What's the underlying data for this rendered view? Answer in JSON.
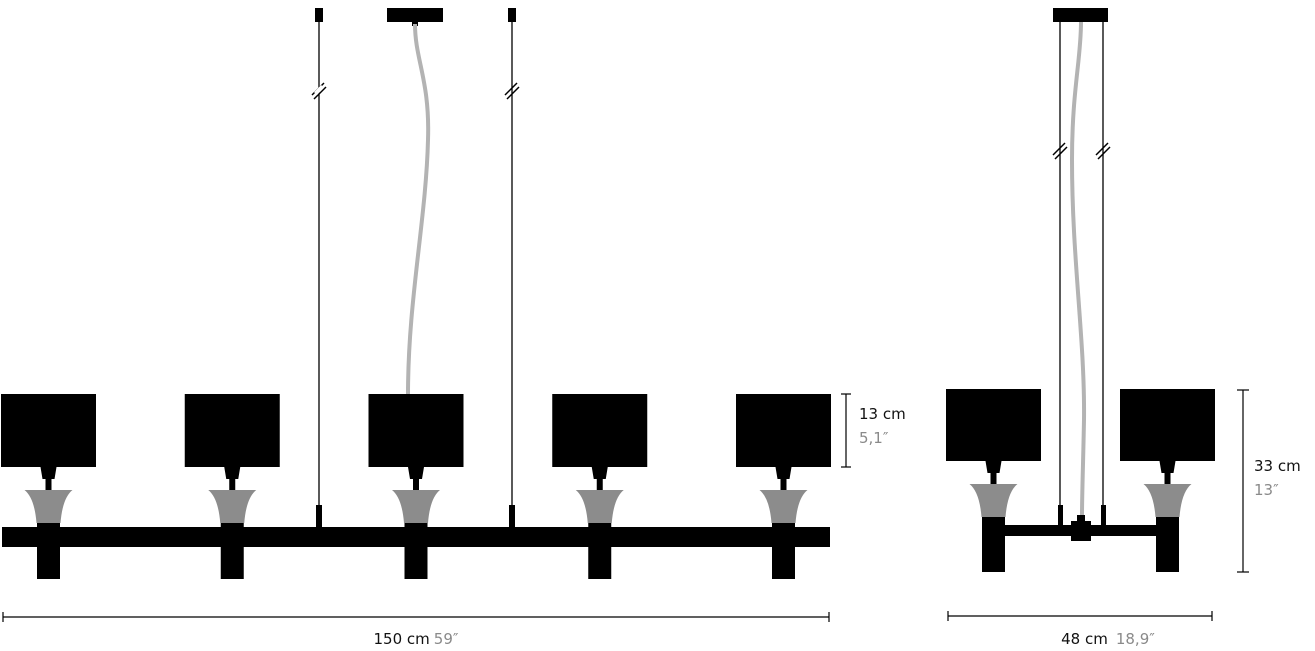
{
  "colors": {
    "fixture": "#000000",
    "diffuser": "#8c8c8c",
    "cable": "#b3b3b3",
    "imperial_text": "#8a8a8a"
  },
  "front_view": {
    "shade_count": 5,
    "height_dimension": {
      "metric": "13 cm",
      "imperial": "5,1″"
    },
    "width_dimension": {
      "metric": "150 cm",
      "imperial": "59″"
    }
  },
  "side_view": {
    "shade_count": 2,
    "height_dimension": {
      "metric": "33 cm",
      "imperial": "13″"
    },
    "width_dimension": {
      "metric": "48 cm",
      "imperial": "18,9″"
    }
  }
}
